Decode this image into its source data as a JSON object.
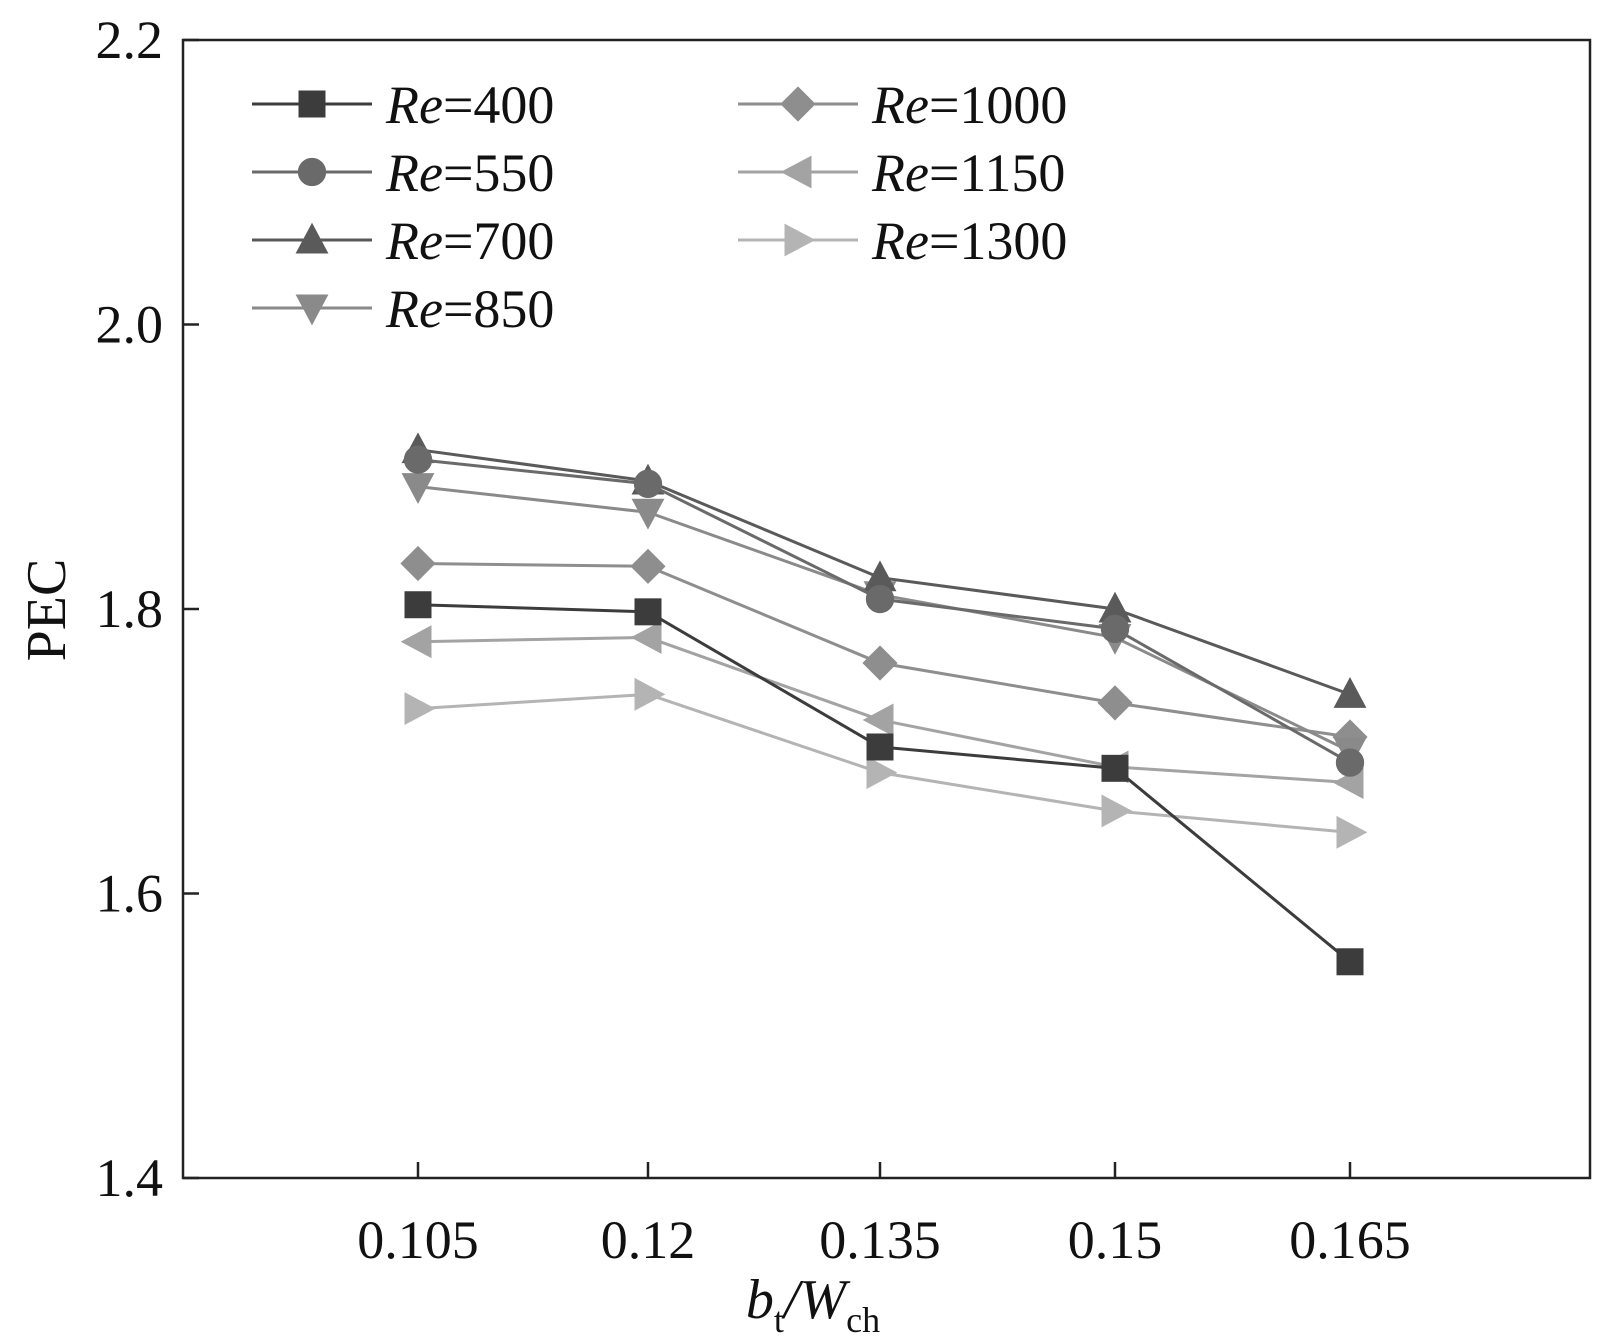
{
  "chart_data": {
    "type": "line",
    "xlabel": {
      "main": "b",
      "sub": "t",
      "sep": "/W",
      "sub2": "ch"
    },
    "ylabel": "PEC",
    "categories": [
      "0.105",
      "0.12",
      "0.135",
      "0.15",
      "0.165"
    ],
    "ylim": [
      1.4,
      2.2
    ],
    "yticks": [
      "1.4",
      "1.6",
      "1.8",
      "2.0",
      "2.2"
    ],
    "ytick_values": [
      1.4,
      1.6,
      1.8,
      2.0,
      2.2
    ],
    "legend_position": "top-left",
    "series": [
      {
        "name": "Re=400",
        "re": "Re",
        "value": "=400",
        "marker": "square",
        "color": "#3c3c3c",
        "values": [
          1.803,
          1.798,
          1.703,
          1.688,
          1.552
        ]
      },
      {
        "name": "Re=550",
        "re": "Re",
        "value": "=550",
        "marker": "circle",
        "color": "#6a6a6a",
        "values": [
          1.905,
          1.888,
          1.807,
          1.786,
          1.692
        ]
      },
      {
        "name": "Re=700",
        "re": "Re",
        "value": "=700",
        "marker": "triangle-up",
        "color": "#5a5a5a",
        "values": [
          1.912,
          1.89,
          1.822,
          1.8,
          1.74
        ]
      },
      {
        "name": "Re=850",
        "re": "Re",
        "value": "=850",
        "marker": "triangle-down",
        "color": "#8a8a8a",
        "values": [
          1.886,
          1.868,
          1.81,
          1.78,
          1.7
        ]
      },
      {
        "name": "Re=1000",
        "re": "Re",
        "value": "=1000",
        "marker": "diamond",
        "color": "#8e8e8e",
        "values": [
          1.832,
          1.83,
          1.762,
          1.734,
          1.71
        ]
      },
      {
        "name": "Re=1150",
        "re": "Re",
        "value": "=1150",
        "marker": "triangle-left",
        "color": "#a3a3a3",
        "values": [
          1.777,
          1.78,
          1.722,
          1.689,
          1.678
        ]
      },
      {
        "name": "Re=1300",
        "re": "Re",
        "value": "=1300",
        "marker": "triangle-right",
        "color": "#b4b4b4",
        "values": [
          1.73,
          1.74,
          1.685,
          1.658,
          1.643
        ]
      }
    ]
  }
}
